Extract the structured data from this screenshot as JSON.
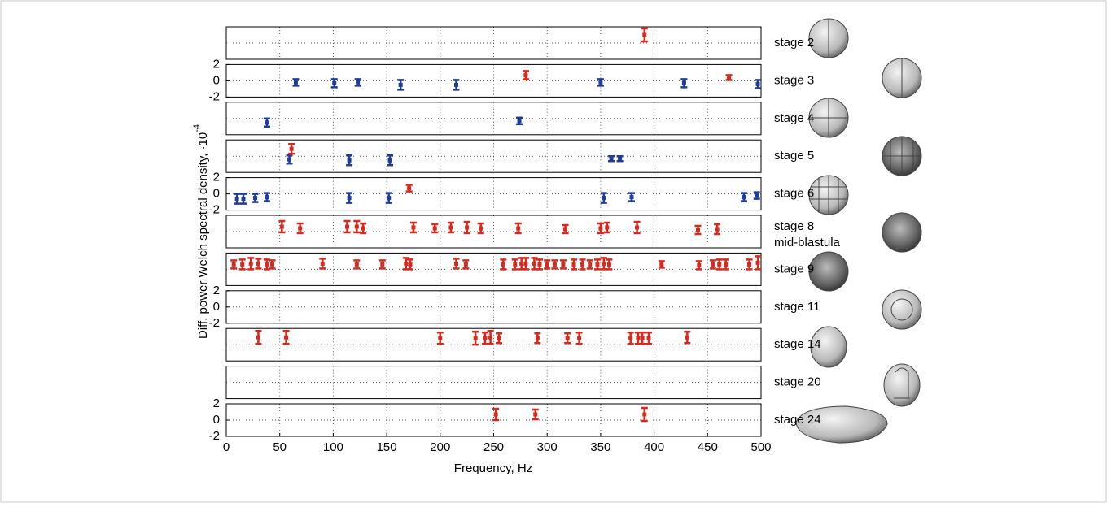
{
  "ylabel": "Diff. power Welch spectral density, ·10",
  "ylabel_exponent": "-4",
  "xlabel": "Frequency, Hz",
  "chart_data": [
    {
      "type": "errorbar",
      "label": "stage 2",
      "xlim": [
        0,
        500
      ],
      "ylim": [
        -2,
        2
      ],
      "xticks": [
        0,
        50,
        100,
        150,
        200,
        250,
        300,
        350,
        400,
        450,
        500
      ],
      "yticks": [
        -2,
        0,
        2
      ],
      "ytick_labels": false,
      "xtick_labels": false,
      "grid": true,
      "series": [
        {
          "color": "#d62a1e",
          "x": [
            391
          ],
          "values": [
            1.0
          ],
          "errors": [
            0.8
          ]
        }
      ]
    },
    {
      "type": "errorbar",
      "label": "stage 3",
      "xlim": [
        0,
        500
      ],
      "ylim": [
        -2,
        2
      ],
      "xticks": [
        0,
        50,
        100,
        150,
        200,
        250,
        300,
        350,
        400,
        450,
        500
      ],
      "yticks": [
        -2,
        0,
        2
      ],
      "ytick_labels": true,
      "xtick_labels": false,
      "grid": true,
      "series": [
        {
          "color": "#1f3c96",
          "x": [
            65,
            101,
            123,
            163,
            215,
            350,
            428,
            497
          ],
          "values": [
            -0.2,
            -0.3,
            -0.2,
            -0.5,
            -0.5,
            -0.2,
            -0.3,
            -0.4
          ],
          "errors": [
            0.4,
            0.5,
            0.4,
            0.6,
            0.6,
            0.4,
            0.5,
            0.5
          ]
        },
        {
          "color": "#d62a1e",
          "x": [
            280,
            470
          ],
          "values": [
            0.7,
            0.4
          ],
          "errors": [
            0.5,
            0.3
          ]
        }
      ]
    },
    {
      "type": "errorbar",
      "label": "stage 4",
      "xlim": [
        0,
        500
      ],
      "ylim": [
        -2,
        2
      ],
      "xticks": [
        0,
        50,
        100,
        150,
        200,
        250,
        300,
        350,
        400,
        450,
        500
      ],
      "yticks": [
        -2,
        0,
        2
      ],
      "ytick_labels": false,
      "xtick_labels": false,
      "grid": true,
      "series": [
        {
          "color": "#1f3c96",
          "x": [
            38,
            274
          ],
          "values": [
            -0.5,
            -0.3
          ],
          "errors": [
            0.5,
            0.4
          ]
        }
      ]
    },
    {
      "type": "errorbar",
      "label": "stage 5",
      "xlim": [
        0,
        500
      ],
      "ylim": [
        -2,
        2
      ],
      "xticks": [
        0,
        50,
        100,
        150,
        200,
        250,
        300,
        350,
        400,
        450,
        500
      ],
      "yticks": [
        -2,
        0,
        2
      ],
      "ytick_labels": false,
      "xtick_labels": false,
      "grid": true,
      "series": [
        {
          "color": "#1f3c96",
          "x": [
            59,
            115,
            153,
            360,
            368
          ],
          "values": [
            -0.4,
            -0.5,
            -0.5,
            -0.3,
            -0.3
          ],
          "errors": [
            0.5,
            0.6,
            0.6,
            0.3,
            0.3
          ]
        },
        {
          "color": "#d62a1e",
          "x": [
            61
          ],
          "values": [
            0.9
          ],
          "errors": [
            0.6
          ]
        }
      ]
    },
    {
      "type": "errorbar",
      "label": "stage 6",
      "xlim": [
        0,
        500
      ],
      "ylim": [
        -2,
        2
      ],
      "xticks": [
        0,
        50,
        100,
        150,
        200,
        250,
        300,
        350,
        400,
        450,
        500
      ],
      "yticks": [
        -2,
        0,
        2
      ],
      "ytick_labels": true,
      "xtick_labels": false,
      "grid": true,
      "series": [
        {
          "color": "#1f3c96",
          "x": [
            10,
            16,
            27,
            38,
            115,
            152,
            353,
            379,
            484,
            496
          ],
          "values": [
            -0.6,
            -0.6,
            -0.5,
            -0.4,
            -0.5,
            -0.5,
            -0.5,
            -0.4,
            -0.4,
            -0.2
          ],
          "errors": [
            0.6,
            0.6,
            0.5,
            0.5,
            0.6,
            0.6,
            0.6,
            0.5,
            0.5,
            0.4
          ]
        },
        {
          "color": "#d62a1e",
          "x": [
            171
          ],
          "values": [
            0.7
          ],
          "errors": [
            0.4
          ]
        }
      ]
    },
    {
      "type": "errorbar",
      "label": "stage 8",
      "sublabel": "mid-blastula",
      "xlim": [
        0,
        500
      ],
      "ylim": [
        -2,
        2
      ],
      "xticks": [
        0,
        50,
        100,
        150,
        200,
        250,
        300,
        350,
        400,
        450,
        500
      ],
      "yticks": [
        -2,
        0,
        2
      ],
      "ytick_labels": false,
      "xtick_labels": false,
      "grid": true,
      "series": [
        {
          "color": "#d62a1e",
          "x": [
            52,
            69,
            113,
            122,
            128,
            175,
            195,
            210,
            225,
            238,
            273,
            317,
            350,
            356,
            384,
            441,
            459
          ],
          "values": [
            0.6,
            0.4,
            0.6,
            0.6,
            0.4,
            0.5,
            0.4,
            0.5,
            0.5,
            0.4,
            0.4,
            0.3,
            0.4,
            0.5,
            0.5,
            0.2,
            0.3
          ],
          "errors": [
            0.7,
            0.6,
            0.7,
            0.7,
            0.6,
            0.6,
            0.5,
            0.6,
            0.7,
            0.6,
            0.6,
            0.5,
            0.6,
            0.6,
            0.7,
            0.5,
            0.6
          ]
        }
      ]
    },
    {
      "type": "errorbar",
      "label": "stage 9",
      "xlim": [
        0,
        500
      ],
      "ylim": [
        -2,
        2
      ],
      "xticks": [
        0,
        50,
        100,
        150,
        200,
        250,
        300,
        350,
        400,
        450,
        500
      ],
      "yticks": [
        -2,
        0,
        2
      ],
      "ytick_labels": false,
      "xtick_labels": false,
      "grid": true,
      "series": [
        {
          "color": "#d62a1e",
          "x": [
            7,
            15,
            23,
            30,
            38,
            43,
            90,
            122,
            146,
            168,
            172,
            215,
            224,
            259,
            270,
            276,
            280,
            288,
            293,
            300,
            307,
            315,
            325,
            333,
            340,
            347,
            353,
            358,
            407,
            442,
            455,
            461,
            467,
            489,
            497
          ],
          "values": [
            0.6,
            0.6,
            0.7,
            0.7,
            0.6,
            0.6,
            0.7,
            0.6,
            0.6,
            0.7,
            0.6,
            0.7,
            0.6,
            0.6,
            0.6,
            0.7,
            0.7,
            0.7,
            0.6,
            0.6,
            0.6,
            0.6,
            0.6,
            0.6,
            0.6,
            0.6,
            0.7,
            0.6,
            0.6,
            0.5,
            0.6,
            0.6,
            0.6,
            0.6,
            0.8
          ],
          "errors": [
            0.5,
            0.6,
            0.7,
            0.6,
            0.6,
            0.5,
            0.6,
            0.5,
            0.5,
            0.7,
            0.6,
            0.6,
            0.5,
            0.6,
            0.6,
            0.7,
            0.7,
            0.7,
            0.6,
            0.5,
            0.5,
            0.5,
            0.6,
            0.6,
            0.5,
            0.6,
            0.7,
            0.6,
            0.4,
            0.5,
            0.5,
            0.6,
            0.6,
            0.6,
            0.8
          ]
        }
      ]
    },
    {
      "type": "errorbar",
      "label": "stage 11",
      "xlim": [
        0,
        500
      ],
      "ylim": [
        -2,
        2
      ],
      "xticks": [
        0,
        50,
        100,
        150,
        200,
        250,
        300,
        350,
        400,
        450,
        500
      ],
      "yticks": [
        -2,
        0,
        2
      ],
      "ytick_labels": true,
      "xtick_labels": false,
      "grid": true,
      "series": []
    },
    {
      "type": "errorbar",
      "label": "stage 14",
      "xlim": [
        0,
        500
      ],
      "ylim": [
        -2,
        2
      ],
      "xticks": [
        0,
        50,
        100,
        150,
        200,
        250,
        300,
        350,
        400,
        450,
        500
      ],
      "yticks": [
        -2,
        0,
        2
      ],
      "ytick_labels": false,
      "xtick_labels": false,
      "grid": true,
      "series": [
        {
          "color": "#d62a1e",
          "x": [
            30,
            56,
            200,
            233,
            242,
            247,
            255,
            291,
            319,
            330,
            378,
            385,
            389,
            395,
            431
          ],
          "values": [
            0.9,
            0.9,
            0.8,
            0.8,
            0.8,
            0.9,
            0.8,
            0.8,
            0.8,
            0.8,
            0.8,
            0.8,
            0.8,
            0.8,
            0.9
          ],
          "errors": [
            0.8,
            0.8,
            0.7,
            0.8,
            0.7,
            0.8,
            0.6,
            0.6,
            0.6,
            0.7,
            0.7,
            0.7,
            0.7,
            0.7,
            0.7
          ]
        }
      ]
    },
    {
      "type": "errorbar",
      "label": "stage 20",
      "xlim": [
        0,
        500
      ],
      "ylim": [
        -2,
        2
      ],
      "xticks": [
        0,
        50,
        100,
        150,
        200,
        250,
        300,
        350,
        400,
        450,
        500
      ],
      "yticks": [
        -2,
        0,
        2
      ],
      "ytick_labels": false,
      "xtick_labels": false,
      "grid": true,
      "series": []
    },
    {
      "type": "errorbar",
      "label": "stage 24",
      "xlim": [
        0,
        500
      ],
      "ylim": [
        -2,
        2
      ],
      "xticks": [
        0,
        50,
        100,
        150,
        200,
        250,
        300,
        350,
        400,
        450,
        500
      ],
      "yticks": [
        -2,
        0,
        2
      ],
      "ytick_labels": true,
      "xtick_labels": true,
      "grid": true,
      "series": [
        {
          "color": "#d62a1e",
          "x": [
            252,
            289,
            391
          ],
          "values": [
            0.7,
            0.7,
            0.7
          ],
          "errors": [
            0.7,
            0.6,
            0.8
          ]
        }
      ]
    }
  ]
}
